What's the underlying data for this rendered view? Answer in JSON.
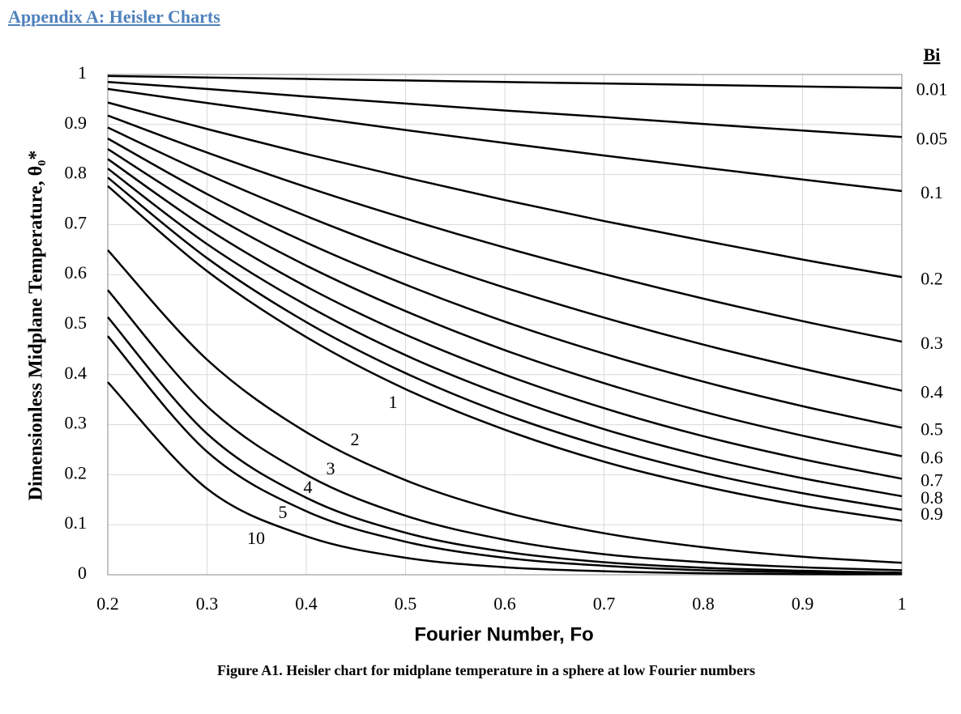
{
  "header": {
    "title": "Appendix A: Heisler Charts"
  },
  "chart_data": {
    "type": "line",
    "xlabel": "Fourier Number, Fo",
    "ylabel": "Dimensionless Midplane Temperature, θ₀*",
    "legend_title": "Bi",
    "caption": "Figure A1. Heisler chart for midplane temperature in a sphere at low Fourier numbers",
    "x": [
      0.2,
      0.3,
      0.4,
      0.5,
      0.6,
      0.7,
      0.8,
      0.9,
      1
    ],
    "xlim": [
      0.2,
      1
    ],
    "xticks": [
      0.2,
      0.3,
      0.4,
      0.5,
      0.6,
      0.7,
      0.8,
      0.9,
      1
    ],
    "ylim": [
      0,
      1
    ],
    "yticks": [
      0,
      0.1,
      0.2,
      0.3,
      0.4,
      0.5,
      0.6,
      0.7,
      0.8,
      0.9,
      1
    ],
    "grid": true,
    "series": [
      {
        "name": "0.01",
        "color": "#000000",
        "values": [
          0.997,
          0.994,
          0.991,
          0.988,
          0.985,
          0.982,
          0.979,
          0.976,
          0.973
        ]
      },
      {
        "name": "0.05",
        "color": "#000000",
        "values": [
          0.985,
          0.971,
          0.956,
          0.942,
          0.928,
          0.915,
          0.901,
          0.888,
          0.875
        ]
      },
      {
        "name": "0.1",
        "color": "#000000",
        "values": [
          0.971,
          0.943,
          0.916,
          0.889,
          0.863,
          0.838,
          0.814,
          0.79,
          0.767
        ]
      },
      {
        "name": "0.2",
        "color": "#000000",
        "values": [
          0.944,
          0.891,
          0.841,
          0.794,
          0.749,
          0.707,
          0.668,
          0.63,
          0.595
        ]
      },
      {
        "name": "0.3",
        "color": "#000000",
        "values": [
          0.918,
          0.844,
          0.775,
          0.712,
          0.654,
          0.601,
          0.552,
          0.507,
          0.466
        ]
      },
      {
        "name": "0.4",
        "color": "#000000",
        "values": [
          0.894,
          0.801,
          0.717,
          0.641,
          0.574,
          0.514,
          0.46,
          0.412,
          0.368
        ]
      },
      {
        "name": "0.5",
        "color": "#000000",
        "values": [
          0.872,
          0.761,
          0.664,
          0.58,
          0.506,
          0.442,
          0.386,
          0.337,
          0.294
        ]
      },
      {
        "name": "0.6",
        "color": "#000000",
        "values": [
          0.851,
          0.725,
          0.618,
          0.527,
          0.449,
          0.383,
          0.326,
          0.278,
          0.237
        ]
      },
      {
        "name": "0.7",
        "color": "#000000",
        "values": [
          0.831,
          0.692,
          0.576,
          0.48,
          0.4,
          0.333,
          0.277,
          0.231,
          0.192
        ]
      },
      {
        "name": "0.8",
        "color": "#000000",
        "values": [
          0.812,
          0.661,
          0.539,
          0.439,
          0.358,
          0.291,
          0.237,
          0.193,
          0.157
        ]
      },
      {
        "name": "0.9",
        "color": "#000000",
        "values": [
          0.794,
          0.633,
          0.505,
          0.403,
          0.321,
          0.256,
          0.204,
          0.163,
          0.13
        ]
      },
      {
        "name": "1",
        "color": "#000000",
        "values": [
          0.777,
          0.607,
          0.475,
          0.371,
          0.29,
          0.226,
          0.177,
          0.138,
          0.108
        ]
      },
      {
        "name": "2",
        "color": "#000000",
        "values": [
          0.649,
          0.43,
          0.285,
          0.189,
          0.125,
          0.083,
          0.055,
          0.036,
          0.024
        ]
      },
      {
        "name": "3",
        "color": "#000000",
        "values": [
          0.569,
          0.337,
          0.2,
          0.118,
          0.07,
          0.041,
          0.025,
          0.015,
          0.009
        ]
      },
      {
        "name": "4",
        "color": "#000000",
        "values": [
          0.515,
          0.282,
          0.154,
          0.084,
          0.046,
          0.025,
          0.014,
          0.008,
          0.004
        ]
      },
      {
        "name": "5",
        "color": "#000000",
        "values": [
          0.477,
          0.246,
          0.127,
          0.066,
          0.034,
          0.018,
          0.009,
          0.005,
          0.002
        ]
      },
      {
        "name": "10",
        "color": "#000000",
        "values": [
          0.385,
          0.172,
          0.077,
          0.034,
          0.015,
          0.007,
          0.003,
          0.001,
          0.001
        ]
      }
    ]
  }
}
